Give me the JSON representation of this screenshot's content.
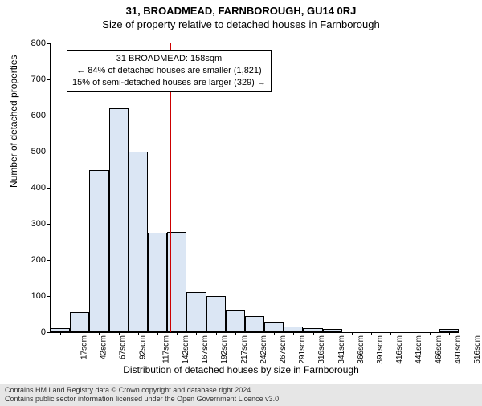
{
  "title_main": "31, BROADMEAD, FARNBOROUGH, GU14 0RJ",
  "title_sub": "Size of property relative to detached houses in Farnborough",
  "chart": {
    "type": "histogram",
    "ylabel": "Number of detached properties",
    "xlabel": "Distribution of detached houses by size in Farnborough",
    "ylim": [
      0,
      800
    ],
    "ytick_step": 100,
    "label_fontsize": 12,
    "tick_fontsize": 11,
    "background_color": "#ffffff",
    "bar_fill": "#dbe6f4",
    "bar_border": "#000000",
    "reference_line_color": "#cc0000",
    "x_categories": [
      "17sqm",
      "42sqm",
      "67sqm",
      "92sqm",
      "117sqm",
      "142sqm",
      "167sqm",
      "192sqm",
      "217sqm",
      "242sqm",
      "267sqm",
      "291sqm",
      "316sqm",
      "341sqm",
      "366sqm",
      "391sqm",
      "416sqm",
      "441sqm",
      "466sqm",
      "491sqm",
      "516sqm"
    ],
    "values": [
      12,
      55,
      448,
      620,
      500,
      275,
      278,
      112,
      100,
      62,
      45,
      30,
      15,
      12,
      10,
      0,
      0,
      0,
      0,
      0,
      8
    ],
    "bar_count": 21,
    "reference_value_sqm": 158,
    "reference_bin_index": 5.64
  },
  "annotation": {
    "line1": "31 BROADMEAD: 158sqm",
    "line2": "← 84% of detached houses are smaller (1,821)",
    "line3": "15% of semi-detached houses are larger (329) →",
    "box_border": "#000000",
    "box_bg": "#ffffff",
    "fontsize": 11
  },
  "footer": {
    "line1": "Contains HM Land Registry data © Crown copyright and database right 2024.",
    "line2": "Contains public sector information licensed under the Open Government Licence v3.0.",
    "bg_color": "#e6e6e6",
    "text_color": "#333333",
    "fontsize": 9
  }
}
